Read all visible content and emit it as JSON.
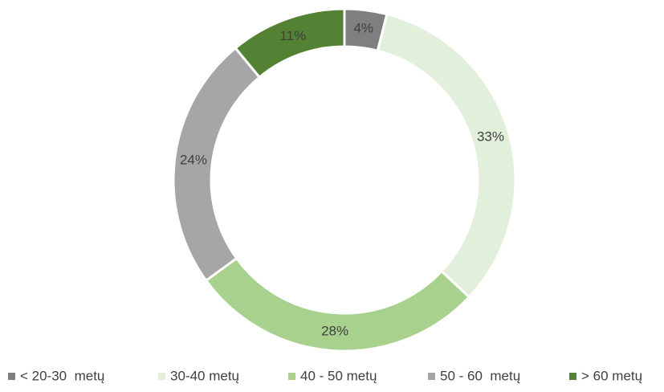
{
  "chart_data": {
    "type": "donut",
    "categories": [
      "< 20-30  metų",
      "30-40 metų",
      "40 - 50 metų",
      "50 - 60  metų",
      "> 60 metų"
    ],
    "values": [
      4,
      33,
      28,
      24,
      11
    ],
    "value_labels": [
      "4%",
      "33%",
      "28%",
      "24%",
      "11%"
    ],
    "colors": [
      "#7f7f7f",
      "#e2efda",
      "#a9d18e",
      "#a6a6a6",
      "#548235"
    ],
    "legend": "bottom"
  }
}
